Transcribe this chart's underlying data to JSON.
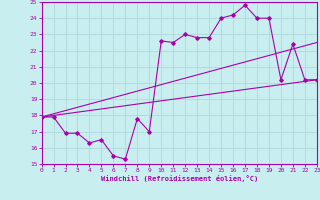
{
  "xlabel": "Windchill (Refroidissement éolien,°C)",
  "bg_color": "#c8eef0",
  "grid_color": "#b0d8dc",
  "line_color": "#aa00aa",
  "xlim": [
    0,
    23
  ],
  "ylim": [
    15,
    25
  ],
  "xticks": [
    0,
    1,
    2,
    3,
    4,
    5,
    6,
    7,
    8,
    9,
    10,
    11,
    12,
    13,
    14,
    15,
    16,
    17,
    18,
    19,
    20,
    21,
    22,
    23
  ],
  "yticks": [
    15,
    16,
    17,
    18,
    19,
    20,
    21,
    22,
    23,
    24,
    25
  ],
  "series1_x": [
    0,
    1,
    2,
    3,
    4,
    5,
    6,
    7,
    8,
    9,
    10,
    11,
    12,
    13,
    14,
    15,
    16,
    17,
    18,
    19,
    20,
    21,
    22,
    23
  ],
  "series1_y": [
    17.9,
    17.9,
    16.9,
    16.9,
    16.3,
    16.5,
    15.5,
    15.3,
    17.8,
    17.0,
    22.6,
    22.5,
    23.0,
    22.8,
    22.8,
    24.0,
    24.2,
    24.8,
    24.0,
    24.0,
    20.2,
    22.4,
    20.2,
    20.2
  ],
  "series2_x": [
    0,
    23
  ],
  "series2_y": [
    17.9,
    22.5
  ],
  "series3_x": [
    0,
    23
  ],
  "series3_y": [
    17.9,
    20.2
  ]
}
